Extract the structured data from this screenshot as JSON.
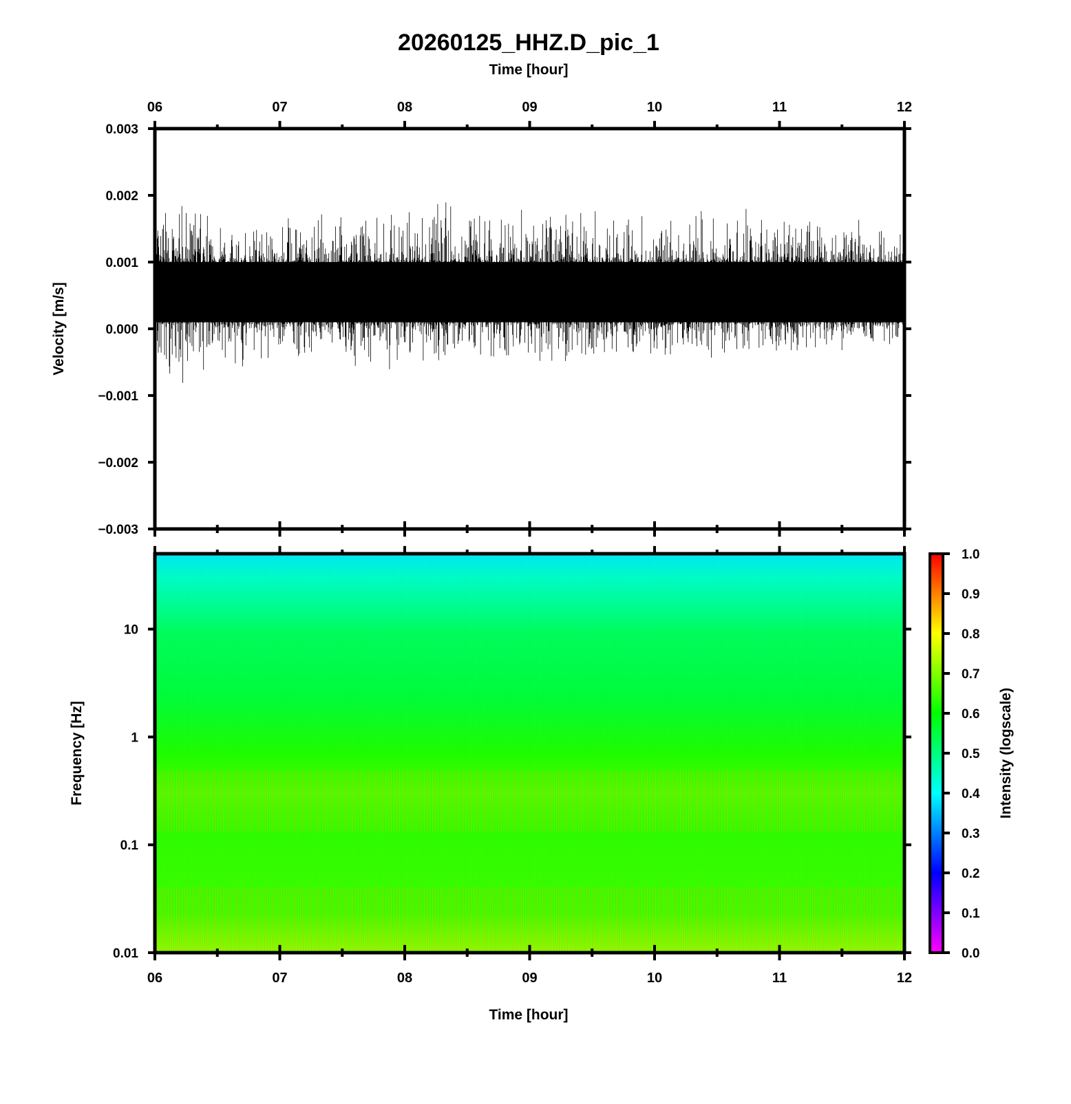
{
  "chart_data": [
    {
      "type": "line",
      "title": "20260125_HHZ.D_pic_1",
      "top_xlabel": "Time [hour]",
      "xlabel": "",
      "ylabel": "Velocity [m/s]",
      "xlim": [
        6,
        12
      ],
      "ylim": [
        -0.003,
        0.003
      ],
      "xticks": [
        "06",
        "07",
        "08",
        "09",
        "10",
        "11",
        "12"
      ],
      "yticks": [
        "0.003",
        "0.002",
        "0.001",
        "0.000",
        "−0.001",
        "−0.002",
        "−0.003"
      ],
      "color": "#000000",
      "envelope": {
        "x": [
          6.0,
          6.33,
          6.5,
          7.0,
          7.5,
          7.67,
          8.0,
          8.27,
          8.5,
          9.0,
          9.5,
          10.0,
          10.5,
          11.0,
          11.5,
          12.0
        ],
        "upper_peak": [
          0.0018,
          0.0021,
          0.0016,
          0.0017,
          0.0019,
          0.0019,
          0.0019,
          0.0022,
          0.0019,
          0.0019,
          0.002,
          0.0018,
          0.0019,
          0.0018,
          0.0018,
          0.0015
        ],
        "lower_peak": [
          -0.0009,
          -0.001,
          -0.0008,
          -0.0005,
          -0.0005,
          -0.0009,
          -0.0006,
          -0.0007,
          -0.0004,
          -0.0006,
          -0.0006,
          -0.0005,
          -0.0005,
          -0.0004,
          -0.0004,
          -0.0003
        ],
        "band_upper": 0.001,
        "band_lower": 0.0001
      }
    },
    {
      "type": "heatmap",
      "xlabel": "Time [hour]",
      "ylabel": "Frequency [Hz]",
      "xlim": [
        6,
        12
      ],
      "ylim": [
        0.01,
        50
      ],
      "yscale": "log",
      "xticks": [
        "06",
        "07",
        "08",
        "09",
        "10",
        "11",
        "12"
      ],
      "yticks": [
        "10",
        "1",
        "0.1",
        "0.01"
      ],
      "intensity_profile": {
        "frequency_hz": [
          50,
          20,
          10,
          3,
          1,
          0.4,
          0.2,
          0.05,
          0.01
        ],
        "intensity": [
          0.42,
          0.5,
          0.56,
          0.6,
          0.62,
          0.66,
          0.66,
          0.63,
          0.68
        ]
      },
      "colorbar": {
        "label": "Intensity (logscale)",
        "range": [
          0.0,
          1.0
        ],
        "ticks": [
          "0.0",
          "0.1",
          "0.2",
          "0.3",
          "0.4",
          "0.5",
          "0.6",
          "0.7",
          "0.8",
          "0.9",
          "1.0"
        ],
        "colormap": [
          "#ff00ff",
          "#0000ff",
          "#00ffff",
          "#00ff00",
          "#ffff00",
          "#ff0000"
        ]
      }
    }
  ]
}
